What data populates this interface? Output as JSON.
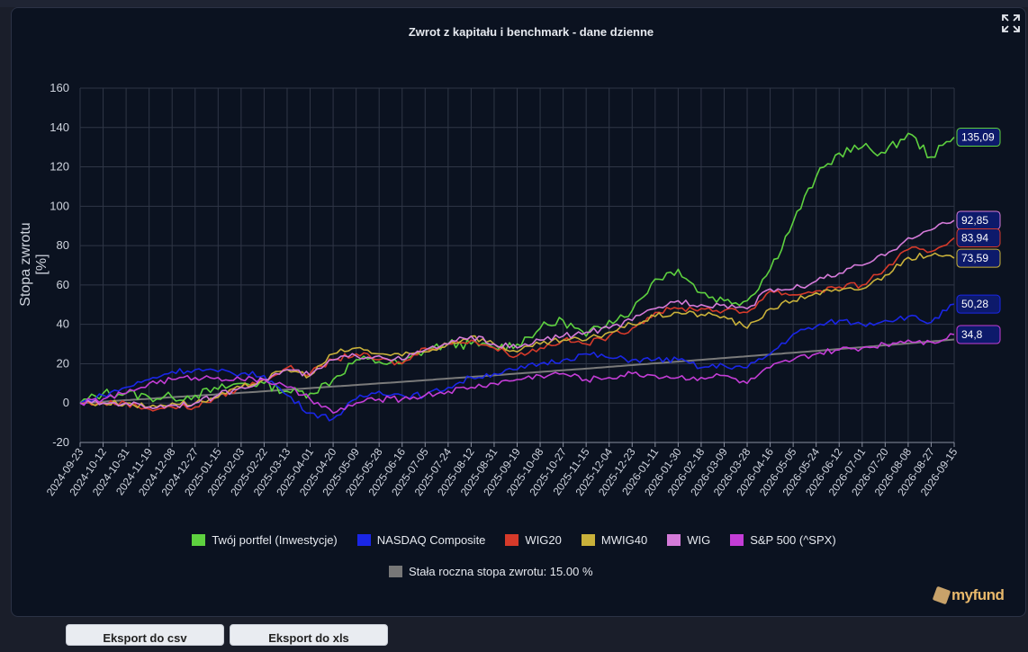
{
  "page": {
    "title": "Zwrot z kapitału i benchmark - dane dzienne"
  },
  "toolbar": {
    "export_csv": "Eksport do csv",
    "export_xls": "Eksport do xls"
  },
  "icons": {
    "fullscreen": "expand-icon",
    "logo": "myfund-logo"
  },
  "logo": {
    "text": "myfund"
  },
  "colors": {
    "background": "#0b1220",
    "grid": "#2f3646"
  },
  "chart_data": {
    "type": "line",
    "title": "Zwrot z kapitału i benchmark - dane dzienne",
    "xlabel": "",
    "ylabel": "Stopa zwrotu [%]",
    "ylim": [
      -20,
      160
    ],
    "yticks": [
      -20,
      0,
      20,
      40,
      60,
      80,
      100,
      120,
      140,
      160
    ],
    "grid": true,
    "legend_position": "bottom",
    "x": [
      "2024-09-23",
      "2024-10-12",
      "2024-10-31",
      "2024-11-19",
      "2024-12-08",
      "2024-12-27",
      "2025-01-15",
      "2025-02-03",
      "2025-02-22",
      "2025-03-13",
      "2025-04-01",
      "2025-04-20",
      "2025-05-09",
      "2025-05-28",
      "2025-06-16",
      "2025-07-05",
      "2025-07-24",
      "2025-08-12",
      "2025-08-31",
      "2025-09-19",
      "2025-10-08",
      "2025-10-27",
      "2025-11-15",
      "2025-12-04",
      "2025-12-23",
      "2026-01-11",
      "2026-01-30",
      "2026-02-18",
      "2026-03-09",
      "2026-03-28",
      "2026-04-16",
      "2026-05-05",
      "2026-05-24",
      "2026-06-12",
      "2026-07-01",
      "2026-07-20",
      "2026-08-08",
      "2026-08-27",
      "2026-09-15"
    ],
    "series": [
      {
        "name": "Twój portfel (Inwestycje)",
        "color": "#5ed13f",
        "last_label": "135,09",
        "values": [
          0,
          5,
          5,
          3,
          3,
          4,
          7,
          10,
          10,
          6,
          5,
          12,
          22,
          21,
          20,
          27,
          30,
          30,
          28,
          30,
          38,
          42,
          34,
          42,
          47,
          63,
          68,
          56,
          52,
          52,
          68,
          92,
          115,
          127,
          130,
          127,
          137,
          125,
          135.09
        ]
      },
      {
        "name": "NASDAQ Composite",
        "color": "#1a26e6",
        "last_label": "50,28",
        "values": [
          0,
          4,
          8,
          12,
          16,
          17,
          16,
          15,
          14,
          4,
          -5,
          -8,
          2,
          6,
          4,
          4,
          8,
          13,
          15,
          17,
          20,
          22,
          25,
          23,
          22,
          22,
          22,
          18,
          19,
          18,
          25,
          35,
          39,
          42,
          40,
          42,
          44,
          41,
          50.28
        ]
      },
      {
        "name": "WIG20",
        "color": "#d63a2a",
        "last_label": "83,94",
        "values": [
          0,
          0,
          0,
          -3,
          -2,
          -2,
          3,
          8,
          12,
          18,
          15,
          22,
          25,
          22,
          20,
          28,
          30,
          32,
          28,
          24,
          28,
          32,
          30,
          34,
          38,
          46,
          48,
          48,
          47,
          46,
          57,
          55,
          57,
          59,
          60,
          68,
          78,
          77,
          83.94
        ]
      },
      {
        "name": "MWIG40",
        "color": "#c9b13a",
        "last_label": "73,59",
        "values": [
          0,
          0,
          0,
          -2,
          0,
          0,
          3,
          8,
          12,
          17,
          14,
          25,
          28,
          25,
          24,
          26,
          30,
          34,
          30,
          26,
          30,
          32,
          32,
          36,
          40,
          44,
          46,
          45,
          44,
          38,
          48,
          52,
          56,
          57,
          58,
          65,
          74,
          75,
          73.59
        ]
      },
      {
        "name": "WIG",
        "color": "#d47ad8",
        "last_label": "92,85",
        "values": [
          0,
          0,
          0,
          -2,
          -1,
          0,
          4,
          8,
          12,
          17,
          14,
          22,
          24,
          24,
          22,
          27,
          30,
          34,
          30,
          28,
          32,
          34,
          36,
          38,
          42,
          48,
          52,
          50,
          50,
          48,
          58,
          58,
          62,
          66,
          70,
          75,
          84,
          88,
          92.85
        ]
      },
      {
        "name": "S&P 500 (^SPX)",
        "color": "#c43dd6",
        "last_label": "34,8",
        "values": [
          0,
          2,
          5,
          10,
          12,
          13,
          13,
          12,
          12,
          8,
          2,
          -5,
          0,
          2,
          2,
          4,
          6,
          8,
          10,
          12,
          14,
          15,
          12,
          13,
          15,
          14,
          13,
          13,
          14,
          10,
          18,
          22,
          25,
          27,
          28,
          30,
          32,
          31,
          34.8
        ]
      },
      {
        "name": "Stała roczna stopa zwrotu: 15.00 %",
        "color": "#7a7a7a",
        "last_label": "",
        "values": [
          0,
          0.7,
          1.5,
          2.2,
          3.0,
          3.7,
          4.5,
          5.2,
          6.0,
          6.8,
          7.6,
          8.4,
          9.2,
          10.0,
          10.8,
          11.6,
          12.5,
          13.3,
          14.1,
          15.0,
          15.8,
          16.7,
          17.5,
          18.4,
          19.3,
          20.2,
          21.1,
          22.0,
          22.9,
          23.8,
          24.7,
          25.6,
          26.5,
          27.5,
          28.4,
          29.4,
          30.3,
          31.3,
          32.3
        ]
      }
    ]
  }
}
